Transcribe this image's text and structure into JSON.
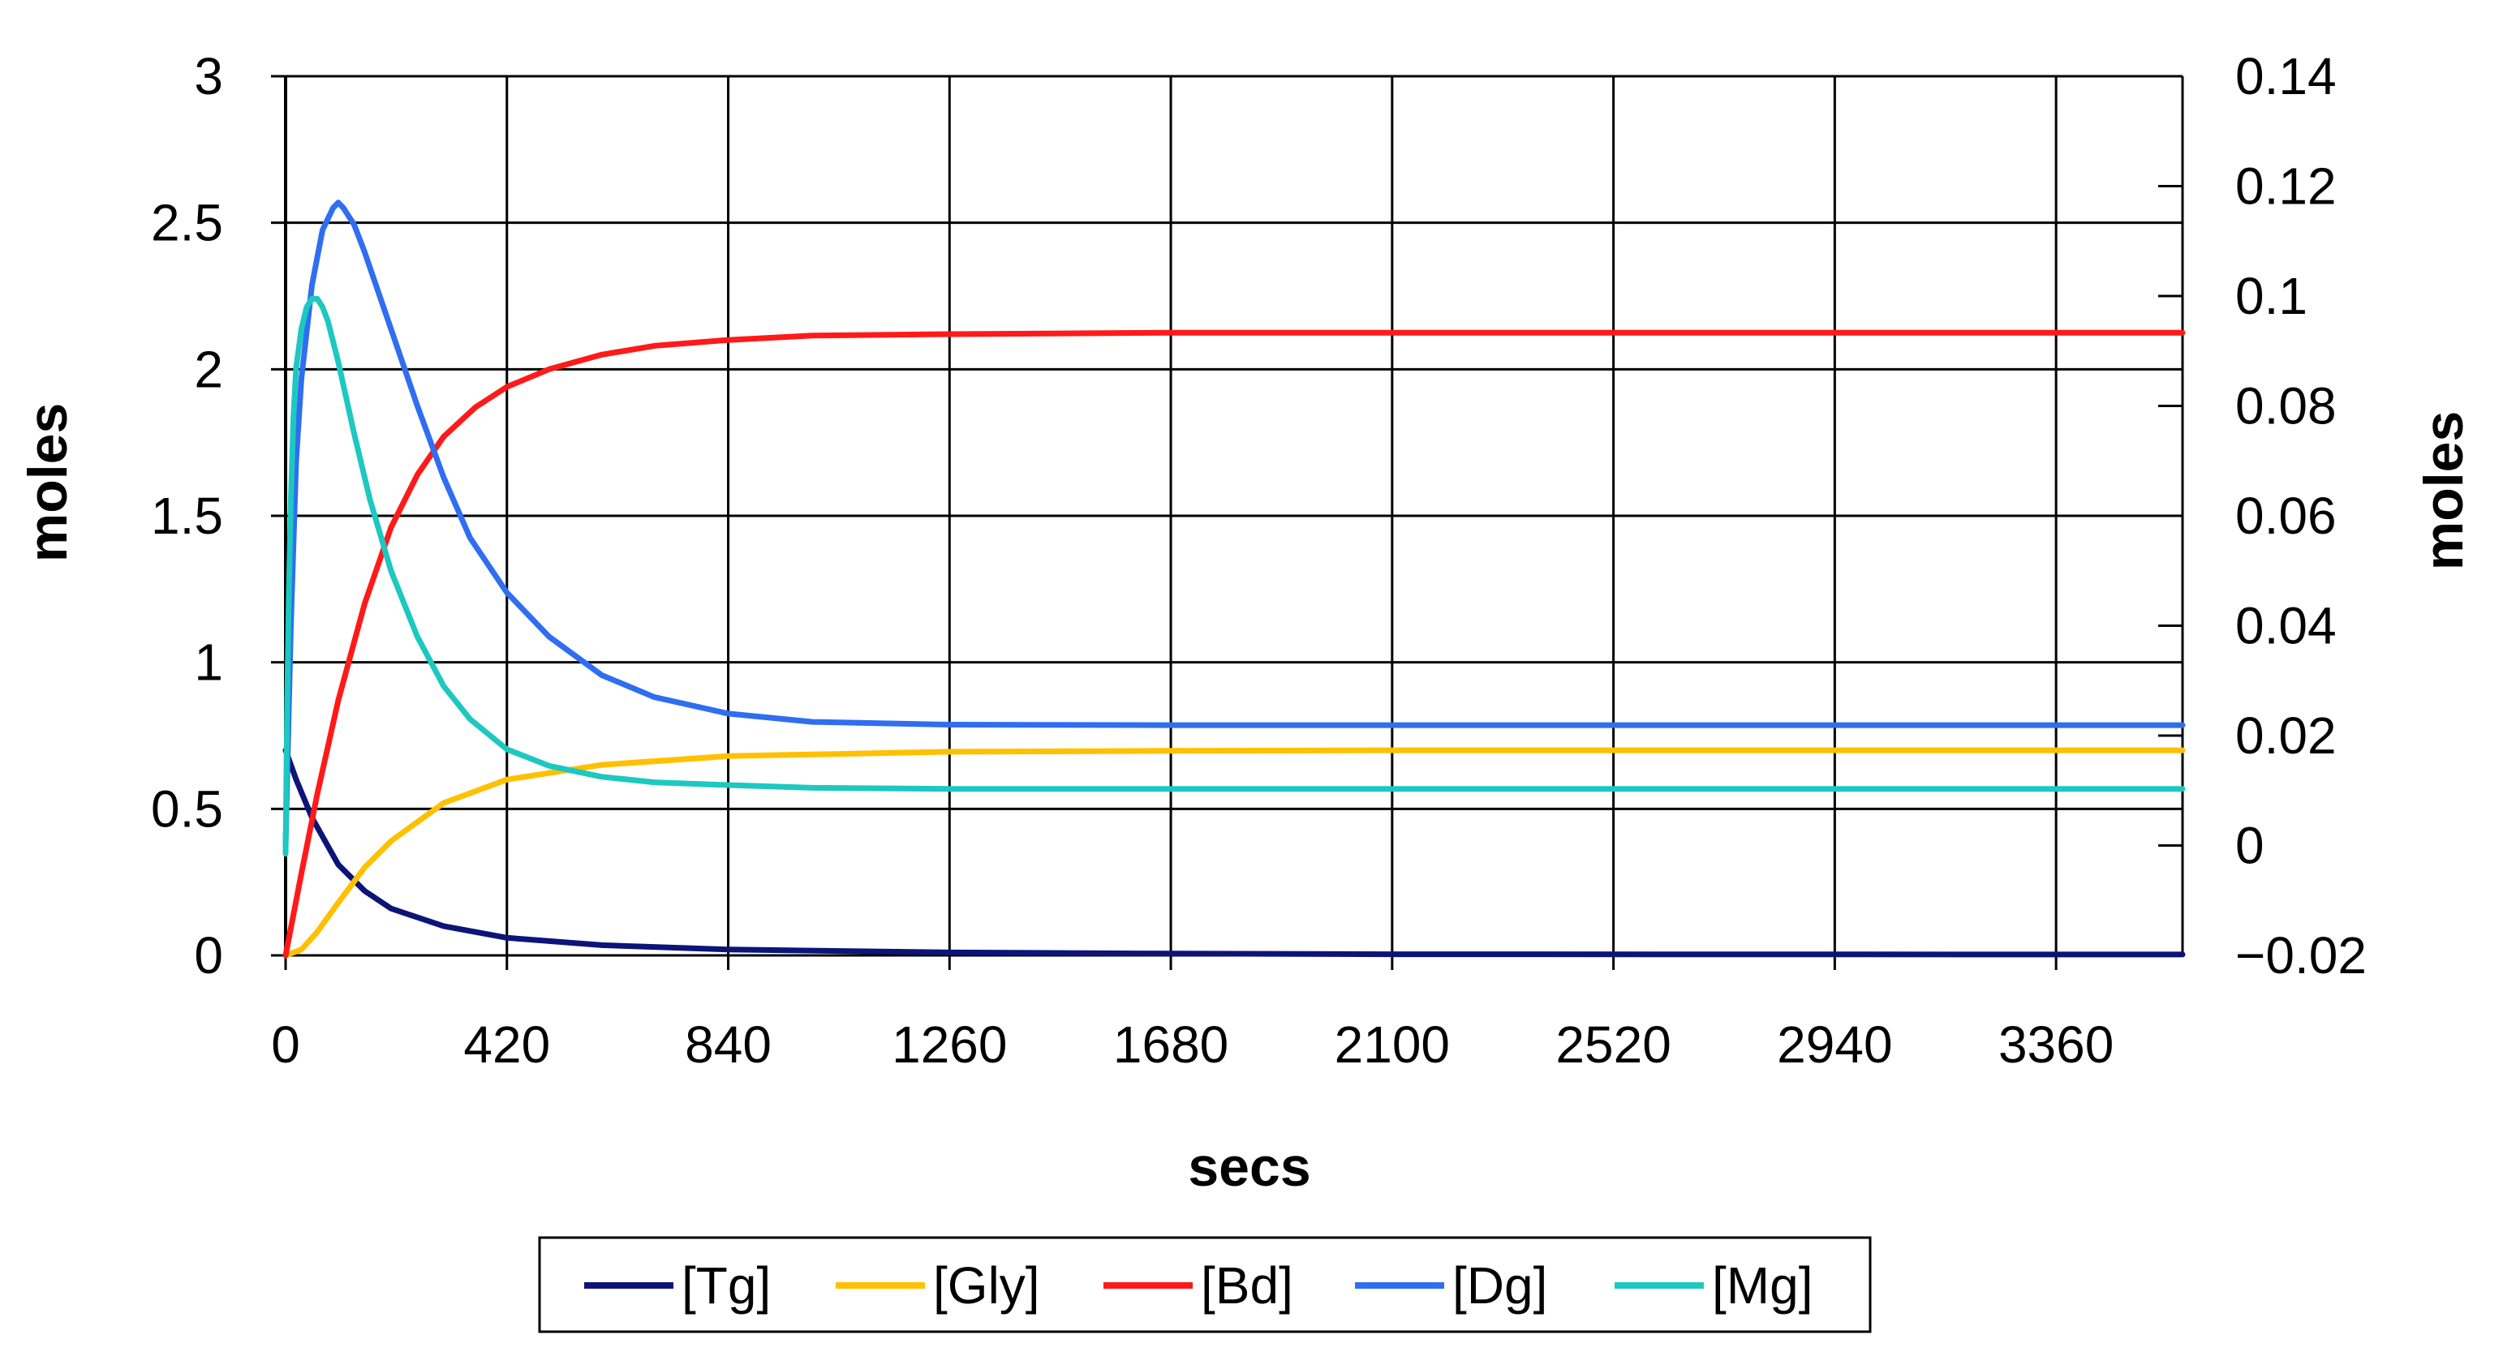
{
  "chart_data": {
    "type": "line",
    "title": "",
    "xlabel": "secs",
    "ylabel": "moles",
    "y2label": "moles",
    "xlim": [
      0,
      3600
    ],
    "ylim": [
      0,
      3
    ],
    "y2lim": [
      -0.02,
      0.14
    ],
    "x_ticks": [
      0,
      420,
      840,
      1260,
      1680,
      2100,
      2520,
      2940,
      3360
    ],
    "y_ticks": [
      0,
      0.5,
      1,
      1.5,
      2,
      2.5,
      3
    ],
    "y_tick_labels": [
      "0",
      "0.5",
      "1",
      "1.5",
      "2",
      "2.5",
      "3"
    ],
    "y2_ticks": [
      -0.02,
      0,
      0.02,
      0.04,
      0.06,
      0.08,
      0.1,
      0.12,
      0.14
    ],
    "y2_tick_labels": [
      "−0.02",
      "0",
      "0.02",
      "0.04",
      "0.06",
      "0.08",
      "0.1",
      "0.12",
      "0.14"
    ],
    "grid": true,
    "legend_position": "bottom",
    "series": [
      {
        "name": "[Tg]",
        "axis": "left",
        "color": "#0d1478",
        "x": [
          0,
          20,
          50,
          100,
          150,
          200,
          300,
          420,
          600,
          840,
          1260,
          1680,
          2100,
          3600
        ],
        "y": [
          0.7,
          0.6,
          0.47,
          0.31,
          0.22,
          0.16,
          0.1,
          0.06,
          0.035,
          0.02,
          0.01,
          0.006,
          0.004,
          0.003
        ]
      },
      {
        "name": "[Gly]",
        "axis": "left",
        "color": "#ffc000",
        "x": [
          0,
          30,
          60,
          100,
          150,
          200,
          300,
          420,
          600,
          840,
          1260,
          1680,
          2100,
          3600
        ],
        "y": [
          0,
          0.02,
          0.08,
          0.18,
          0.3,
          0.39,
          0.52,
          0.6,
          0.65,
          0.68,
          0.695,
          0.698,
          0.7,
          0.7
        ]
      },
      {
        "name": "[Bd]",
        "axis": "left",
        "color": "#ff1a1a",
        "x": [
          0,
          30,
          60,
          100,
          150,
          200,
          250,
          300,
          360,
          420,
          500,
          600,
          700,
          840,
          1000,
          1260,
          1680,
          2100,
          3600
        ],
        "y": [
          0,
          0.28,
          0.55,
          0.87,
          1.2,
          1.46,
          1.64,
          1.77,
          1.87,
          1.94,
          2.0,
          2.05,
          2.08,
          2.1,
          2.115,
          2.12,
          2.125,
          2.125,
          2.125
        ]
      },
      {
        "name": "[Dg]",
        "axis": "right",
        "color": "#2f6ef0",
        "x": [
          0,
          5,
          10,
          20,
          30,
          50,
          70,
          90,
          100,
          110,
          130,
          150,
          200,
          250,
          300,
          350,
          420,
          500,
          600,
          700,
          840,
          1000,
          1260,
          1680,
          2100,
          3600
        ],
        "y": [
          0,
          0.02,
          0.04,
          0.07,
          0.085,
          0.102,
          0.112,
          0.116,
          0.117,
          0.116,
          0.113,
          0.108,
          0.094,
          0.08,
          0.067,
          0.056,
          0.046,
          0.038,
          0.031,
          0.027,
          0.024,
          0.0225,
          0.022,
          0.0219,
          0.0219,
          0.0219
        ]
      },
      {
        "name": "[Mg]",
        "axis": "right",
        "color": "#1dc8c0",
        "x": [
          0,
          3,
          6,
          10,
          15,
          20,
          30,
          40,
          50,
          60,
          70,
          80,
          100,
          130,
          160,
          200,
          250,
          300,
          350,
          420,
          500,
          600,
          700,
          840,
          1000,
          1260,
          1680,
          2100,
          3600
        ],
        "y": [
          -0.0015,
          0.025,
          0.045,
          0.063,
          0.078,
          0.087,
          0.094,
          0.098,
          0.0995,
          0.0995,
          0.098,
          0.0955,
          0.088,
          0.075,
          0.063,
          0.05,
          0.038,
          0.029,
          0.023,
          0.0175,
          0.0145,
          0.0125,
          0.0115,
          0.011,
          0.0105,
          0.0103,
          0.0103,
          0.0103,
          0.0103
        ]
      }
    ]
  }
}
